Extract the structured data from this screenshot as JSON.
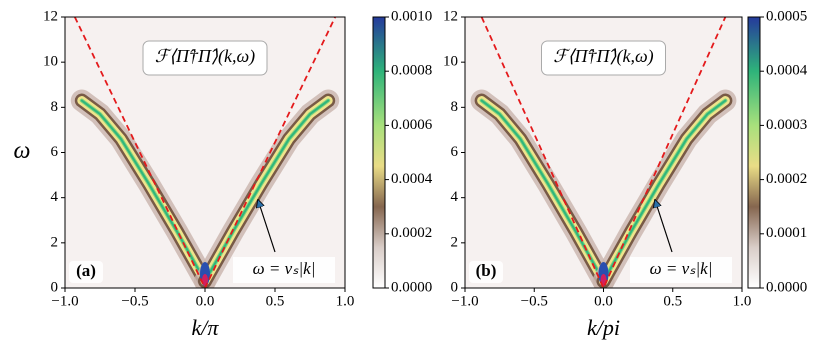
{
  "chart_data": [
    {
      "type": "heatmap",
      "title": "ℱ⟨Π̂†Π̂⟩(k,ω)",
      "panel_label": "(a)",
      "annotation": "ω = vₛ|k|",
      "xlabel": "k/π",
      "ylabel": "ω",
      "x": [
        -0.93,
        0,
        0.93
      ],
      "series": [
        {
          "color": "#e41a1c",
          "values": [
            12,
            0,
            12
          ]
        }
      ],
      "xlim": [
        -1,
        1
      ],
      "ylim": [
        0,
        12
      ],
      "xticks": [
        {
          "value": -1,
          "label": "−1.0"
        },
        {
          "value": -0.5,
          "label": "−0.5"
        },
        {
          "value": 0,
          "label": "0.0"
        },
        {
          "value": 0.5,
          "label": "0.5"
        },
        {
          "value": 1,
          "label": "1.0"
        }
      ],
      "yticks": [
        0,
        2,
        4,
        6,
        8,
        10,
        12
      ],
      "colorbar": {
        "lim": [
          0,
          0.001
        ],
        "ticks": [
          {
            "value": 0,
            "label": "0.0000"
          },
          {
            "value": 0.0002,
            "label": "0.0002"
          },
          {
            "value": 0.0004,
            "label": "0.0004"
          },
          {
            "value": 0.0006,
            "label": "0.0006"
          },
          {
            "value": 0.0008,
            "label": "0.0008"
          },
          {
            "value": 0.001,
            "label": "0.0010"
          }
        ]
      }
    },
    {
      "type": "heatmap",
      "title": "ℱ⟨Π̂†Π̂⟩(k,ω)",
      "panel_label": "(b)",
      "annotation": "ω = vₛ|k|",
      "xlabel": "k/pi",
      "x": [
        -0.88,
        0,
        0.88
      ],
      "series": [
        {
          "color": "#e41a1c",
          "values": [
            12,
            0,
            12
          ]
        }
      ],
      "xlim": [
        -1,
        1
      ],
      "ylim": [
        0,
        12
      ],
      "xticks": [
        {
          "value": -1,
          "label": "−1.0"
        },
        {
          "value": -0.5,
          "label": "−0.5"
        },
        {
          "value": 0,
          "label": "0.0"
        },
        {
          "value": 0.5,
          "label": "0.5"
        },
        {
          "value": 1,
          "label": "1.0"
        }
      ],
      "yticks": [
        0,
        2,
        4,
        6,
        8,
        10,
        12
      ],
      "colorbar": {
        "lim": [
          0,
          0.0005
        ],
        "ticks": [
          {
            "value": 0,
            "label": "0.0000"
          },
          {
            "value": 0.0001,
            "label": "0.0001"
          },
          {
            "value": 0.0002,
            "label": "0.0002"
          },
          {
            "value": 0.0003,
            "label": "0.0003"
          },
          {
            "value": 0.0004,
            "label": "0.0004"
          },
          {
            "value": 0.0005,
            "label": "0.0005"
          }
        ]
      }
    }
  ]
}
